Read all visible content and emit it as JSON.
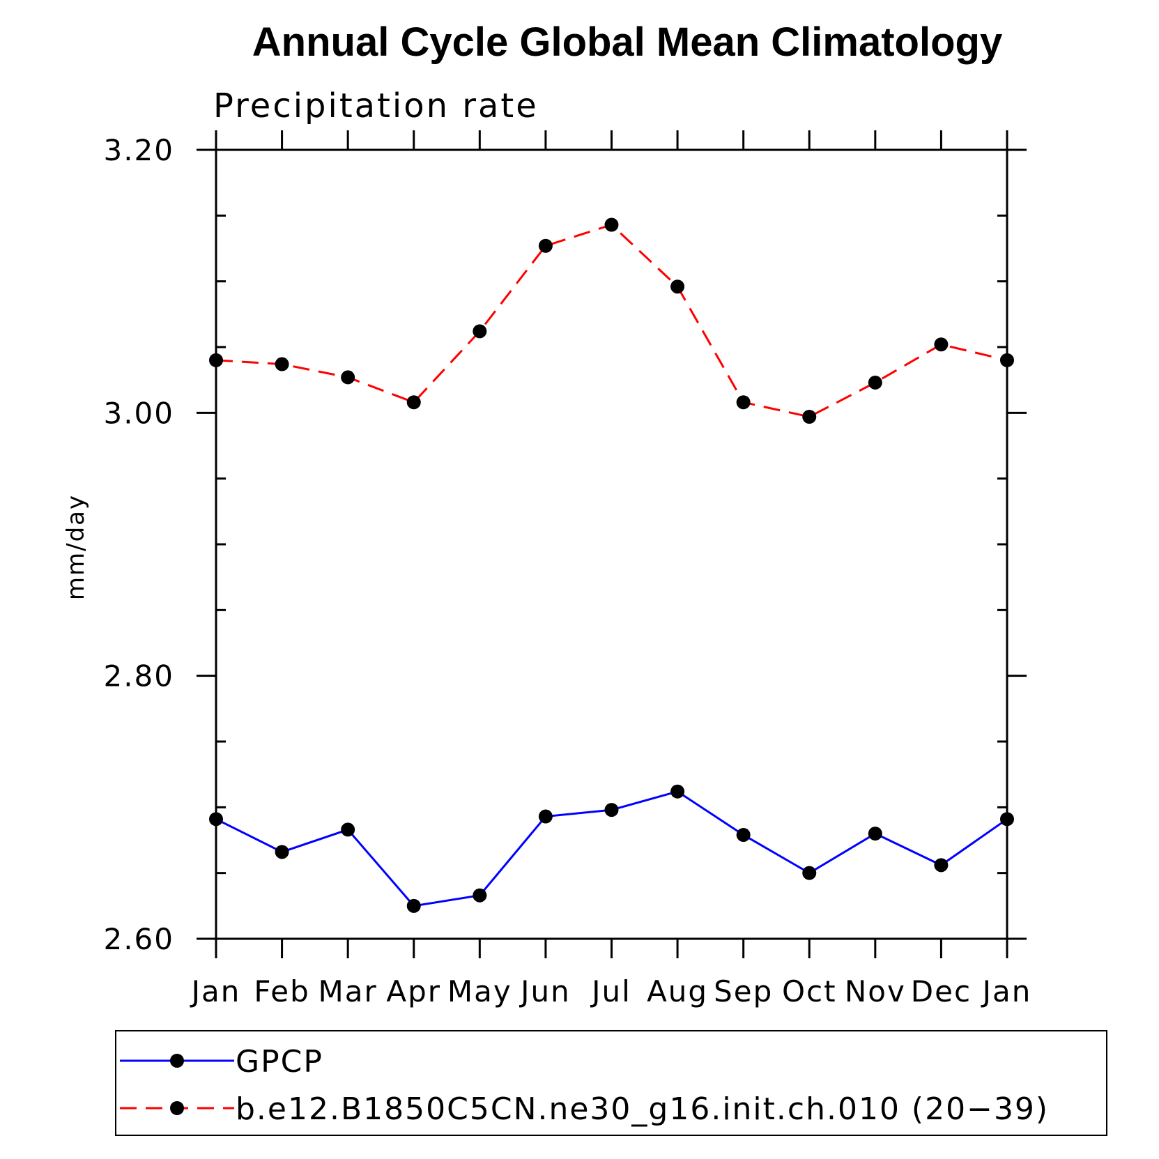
{
  "chart_data": {
    "type": "line",
    "title": "Annual Cycle Global Mean Climatology",
    "subtitle": "Precipitation rate",
    "ylabel": "mm/day",
    "xlabel": "",
    "categories": [
      "Jan",
      "Feb",
      "Mar",
      "Apr",
      "May",
      "Jun",
      "Jul",
      "Aug",
      "Sep",
      "Oct",
      "Nov",
      "Dec",
      "Jan"
    ],
    "ylim": [
      2.6,
      3.2
    ],
    "yticks_major": [
      2.6,
      2.8,
      3.0,
      3.2
    ],
    "ytick_labels": [
      "2.60",
      "2.80",
      "3.00",
      "3.20"
    ],
    "yticks_minor": [
      2.65,
      2.7,
      2.75,
      2.85,
      2.9,
      2.95,
      3.05,
      3.1,
      3.15
    ],
    "legend_position": "bottom",
    "series": [
      {
        "name": "GPCP",
        "color": "#0000ff",
        "style": "solid",
        "marker": "filled-circle",
        "values": [
          2.691,
          2.666,
          2.683,
          2.625,
          2.633,
          2.693,
          2.698,
          2.712,
          2.679,
          2.65,
          2.68,
          2.656,
          2.691
        ]
      },
      {
        "name": "b.e12.B1850C5CN.ne30_g16.init.ch.010 (20−39)",
        "color": "#ff0000",
        "style": "dashed",
        "marker": "filled-circle",
        "values": [
          3.04,
          3.037,
          3.027,
          3.008,
          3.062,
          3.127,
          3.143,
          3.096,
          3.008,
          2.997,
          3.023,
          3.052,
          3.04
        ]
      }
    ]
  }
}
